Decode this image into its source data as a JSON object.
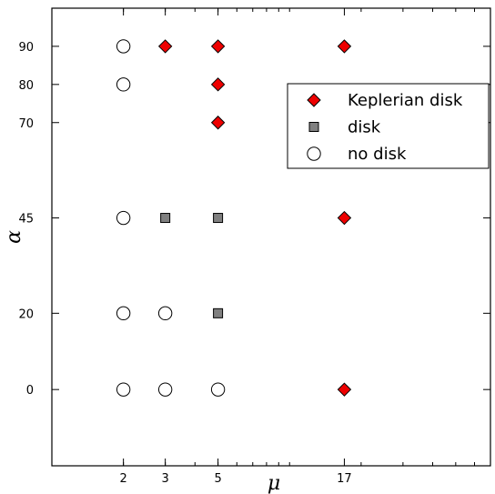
{
  "chart_data": {
    "type": "scatter",
    "title": "",
    "xlabel": "μ",
    "ylabel": "α",
    "x_scale": "log",
    "xlim": [
      1,
      70
    ],
    "ylim": [
      -20,
      100
    ],
    "x_ticks": [
      2,
      3,
      5,
      17
    ],
    "y_ticks": [
      0,
      20,
      45,
      70,
      80,
      90
    ],
    "grid": false,
    "legend_position": "upper-right",
    "series": [
      {
        "name": "Keplerian disk",
        "marker": "diamond",
        "color": "#ee0000",
        "points": [
          [
            3,
            90
          ],
          [
            5,
            90
          ],
          [
            17,
            90
          ],
          [
            5,
            80
          ],
          [
            5,
            70
          ],
          [
            17,
            45
          ],
          [
            17,
            0
          ]
        ]
      },
      {
        "name": "disk",
        "marker": "square",
        "color": "#808080",
        "points": [
          [
            3,
            45
          ],
          [
            5,
            45
          ],
          [
            5,
            20
          ]
        ]
      },
      {
        "name": "no disk",
        "marker": "circle",
        "color": "#ffffff",
        "points": [
          [
            2,
            90
          ],
          [
            2,
            80
          ],
          [
            2,
            45
          ],
          [
            2,
            20
          ],
          [
            3,
            20
          ],
          [
            2,
            0
          ],
          [
            3,
            0
          ],
          [
            5,
            0
          ]
        ]
      }
    ]
  }
}
